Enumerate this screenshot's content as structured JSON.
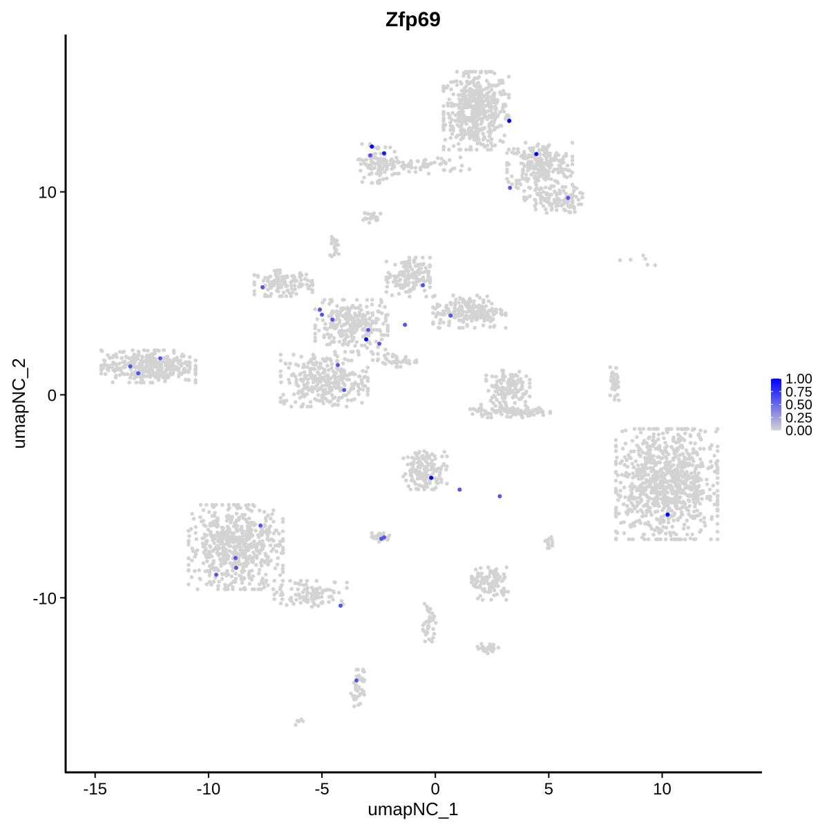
{
  "chart_data": {
    "type": "scatter",
    "title": "Zfp69",
    "xlabel": "umapNC_1",
    "ylabel": "umapNC_2",
    "xlim": [
      -16.3,
      14.4
    ],
    "ylim": [
      -18.6,
      17.75
    ],
    "x_ticks": [
      -15,
      -10,
      -5,
      0,
      5,
      10
    ],
    "y_ticks": [
      -10,
      0,
      10
    ],
    "x_tick_labels": [
      "-15",
      "-10",
      "-5",
      "0",
      "5",
      "10"
    ],
    "y_tick_labels": [
      "-10",
      "0",
      "10"
    ],
    "grid": false,
    "legend": {
      "placement": "right",
      "type": "colorbar",
      "ticks": [
        1.0,
        0.75,
        0.5,
        0.25,
        0.0
      ],
      "tick_labels": [
        "1.00",
        "0.75",
        "0.50",
        "0.25",
        "0.00"
      ],
      "low_color": "#d3d3d3",
      "high_color": "#0000ff"
    },
    "background_clusters_zero_expression": [
      {
        "cx": 1.8,
        "cy": 14.0,
        "sx": 0.9,
        "sy": 1.2,
        "n": 500
      },
      {
        "cx": 4.6,
        "cy": 11.3,
        "sx": 0.9,
        "sy": 0.7,
        "n": 250
      },
      {
        "cx": 5.2,
        "cy": 9.6,
        "sx": 0.8,
        "sy": 0.4,
        "n": 120
      },
      {
        "cx": -0.9,
        "cy": 11.3,
        "sx": 1.5,
        "sy": 0.25,
        "n": 80
      },
      {
        "cx": -2.6,
        "cy": 11.4,
        "sx": 0.5,
        "sy": 0.6,
        "n": 80
      },
      {
        "cx": -2.7,
        "cy": 8.7,
        "sx": 0.3,
        "sy": 0.2,
        "n": 20
      },
      {
        "cx": -4.4,
        "cy": 7.3,
        "sx": 0.15,
        "sy": 0.3,
        "n": 20
      },
      {
        "cx": -6.7,
        "cy": 5.5,
        "sx": 0.8,
        "sy": 0.4,
        "n": 120
      },
      {
        "cx": -3.7,
        "cy": 3.4,
        "sx": 1.0,
        "sy": 0.8,
        "n": 250
      },
      {
        "cx": -1.2,
        "cy": 5.8,
        "sx": 0.6,
        "sy": 0.6,
        "n": 150
      },
      {
        "cx": 1.5,
        "cy": 4.1,
        "sx": 1.0,
        "sy": 0.5,
        "n": 200
      },
      {
        "cx": -4.9,
        "cy": 0.7,
        "sx": 1.2,
        "sy": 0.8,
        "n": 300
      },
      {
        "cx": -1.8,
        "cy": 1.7,
        "sx": 0.6,
        "sy": 0.2,
        "n": 40
      },
      {
        "cx": -12.65,
        "cy": 1.4,
        "sx": 1.3,
        "sy": 0.5,
        "n": 350
      },
      {
        "cx": 3.2,
        "cy": 0.4,
        "sx": 0.6,
        "sy": 0.5,
        "n": 120
      },
      {
        "cx": 3.3,
        "cy": -0.8,
        "sx": 1.1,
        "sy": 0.2,
        "n": 100
      },
      {
        "cx": 7.9,
        "cy": 0.4,
        "sx": 0.12,
        "sy": 0.6,
        "n": 40
      },
      {
        "cx": 10.2,
        "cy": -4.4,
        "sx": 1.4,
        "sy": 1.7,
        "n": 900
      },
      {
        "cx": -0.45,
        "cy": -3.7,
        "sx": 0.6,
        "sy": 0.6,
        "n": 150
      },
      {
        "cx": -8.8,
        "cy": -7.5,
        "sx": 1.3,
        "sy": 1.3,
        "n": 600
      },
      {
        "cx": -5.5,
        "cy": -9.8,
        "sx": 1.0,
        "sy": 0.4,
        "n": 100
      },
      {
        "cx": -2.4,
        "cy": -7.0,
        "sx": 0.25,
        "sy": 0.15,
        "n": 30
      },
      {
        "cx": 2.4,
        "cy": -9.3,
        "sx": 0.5,
        "sy": 0.5,
        "n": 100
      },
      {
        "cx": -0.3,
        "cy": -11.2,
        "sx": 0.2,
        "sy": 0.6,
        "n": 40
      },
      {
        "cx": 2.3,
        "cy": -12.5,
        "sx": 0.3,
        "sy": 0.15,
        "n": 25
      },
      {
        "cx": -3.4,
        "cy": -14.5,
        "sx": 0.2,
        "sy": 0.6,
        "n": 40
      },
      {
        "cx": -6.0,
        "cy": -16.1,
        "sx": 0.1,
        "sy": 0.1,
        "n": 5
      },
      {
        "cx": 5.0,
        "cy": -7.3,
        "sx": 0.1,
        "sy": 0.2,
        "n": 15
      },
      {
        "cx": 9.2,
        "cy": 6.7,
        "sx": 0.8,
        "sy": 0.2,
        "n": 6
      }
    ],
    "expressing_points": [
      {
        "x": 3.26,
        "y": 13.5,
        "value": 1.0
      },
      {
        "x": -2.8,
        "y": 12.23,
        "value": 1.0
      },
      {
        "x": -2.26,
        "y": 11.9,
        "value": 0.9
      },
      {
        "x": -2.87,
        "y": 11.8,
        "value": 0.6
      },
      {
        "x": 4.45,
        "y": 11.86,
        "value": 1.0
      },
      {
        "x": 3.29,
        "y": 10.2,
        "value": 0.6
      },
      {
        "x": 5.85,
        "y": 9.7,
        "value": 0.6
      },
      {
        "x": -7.62,
        "y": 5.3,
        "value": 0.6
      },
      {
        "x": -0.55,
        "y": 5.4,
        "value": 0.6
      },
      {
        "x": -5.09,
        "y": 4.2,
        "value": 0.6
      },
      {
        "x": -5.0,
        "y": 3.95,
        "value": 0.6
      },
      {
        "x": -4.54,
        "y": 3.7,
        "value": 0.6
      },
      {
        "x": 0.67,
        "y": 3.9,
        "value": 0.6
      },
      {
        "x": -1.34,
        "y": 3.45,
        "value": 0.6
      },
      {
        "x": -2.96,
        "y": 3.2,
        "value": 0.6
      },
      {
        "x": -3.05,
        "y": 2.73,
        "value": 1.0
      },
      {
        "x": -2.47,
        "y": 2.52,
        "value": 0.6
      },
      {
        "x": -12.13,
        "y": 1.8,
        "value": 0.6
      },
      {
        "x": -13.45,
        "y": 1.4,
        "value": 0.6
      },
      {
        "x": -13.1,
        "y": 1.06,
        "value": 0.6
      },
      {
        "x": -4.3,
        "y": 1.47,
        "value": 0.6
      },
      {
        "x": -4.02,
        "y": 0.24,
        "value": 0.6
      },
      {
        "x": -0.18,
        "y": -4.09,
        "value": 1.0
      },
      {
        "x": 1.07,
        "y": -4.67,
        "value": 0.6
      },
      {
        "x": 2.84,
        "y": -5.0,
        "value": 0.6
      },
      {
        "x": 10.24,
        "y": -5.9,
        "value": 1.0
      },
      {
        "x": -7.71,
        "y": -6.44,
        "value": 0.6
      },
      {
        "x": -2.26,
        "y": -7.02,
        "value": 0.6
      },
      {
        "x": -2.38,
        "y": -7.09,
        "value": 0.6
      },
      {
        "x": -8.81,
        "y": -8.04,
        "value": 0.6
      },
      {
        "x": -8.78,
        "y": -8.52,
        "value": 0.6
      },
      {
        "x": -9.66,
        "y": -8.86,
        "value": 0.6
      },
      {
        "x": -4.18,
        "y": -10.39,
        "value": 0.6
      },
      {
        "x": -3.48,
        "y": -14.07,
        "value": 0.6
      }
    ]
  }
}
